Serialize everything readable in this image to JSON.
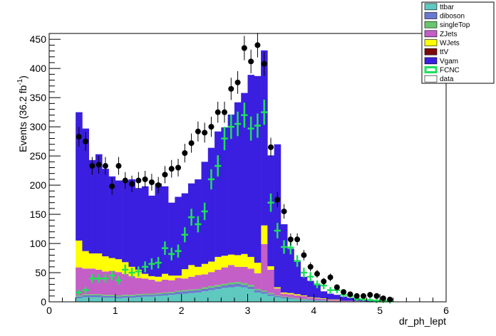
{
  "chart_data": {
    "type": "bar",
    "stacked": true,
    "xlabel": "dr_ph_lept",
    "ylabel_main": "Events (36.2 fb",
    "ylabel_sup": "-1",
    "ylabel_close": ")",
    "xlim": [
      0,
      6
    ],
    "ylim": [
      0,
      460
    ],
    "xticks": [
      0,
      1,
      2,
      3,
      4,
      5,
      6
    ],
    "yticks": [
      0,
      50,
      100,
      150,
      200,
      250,
      300,
      350,
      400,
      450
    ],
    "grid": false,
    "legend_position": "top-right",
    "bin_width": 0.1,
    "x_start": 0.4,
    "series": [
      {
        "name": "ttbar",
        "color": "#5fc9c0",
        "values": [
          6,
          8,
          8,
          8,
          7,
          7,
          6,
          7,
          7,
          8,
          9,
          9,
          10,
          11,
          12,
          13,
          14,
          15,
          16,
          18,
          20,
          22,
          24,
          25,
          26,
          25,
          22,
          16,
          14,
          10,
          8,
          6,
          5,
          4,
          3,
          3,
          2,
          2,
          1,
          1,
          1,
          1,
          1,
          0,
          0,
          0,
          0,
          0
        ]
      },
      {
        "name": "diboson",
        "color": "#6b78d0",
        "values": [
          3,
          3,
          3,
          3,
          3,
          3,
          3,
          3,
          3,
          3,
          3,
          3,
          3,
          3,
          3,
          4,
          4,
          4,
          4,
          4,
          4,
          4,
          4,
          5,
          5,
          4,
          4,
          4,
          3,
          3,
          2,
          2,
          2,
          1,
          1,
          1,
          1,
          1,
          0,
          0,
          0,
          0,
          0,
          0,
          0,
          0,
          0,
          0
        ]
      },
      {
        "name": "singleTop",
        "color": "#69c66e",
        "values": [
          2,
          2,
          2,
          2,
          2,
          2,
          2,
          2,
          2,
          2,
          2,
          2,
          2,
          2,
          2,
          2,
          2,
          2,
          2,
          3,
          3,
          3,
          3,
          3,
          3,
          3,
          3,
          2,
          2,
          2,
          1,
          1,
          1,
          1,
          1,
          0,
          0,
          0,
          0,
          0,
          0,
          0,
          0,
          0,
          0,
          0,
          0,
          0
        ]
      },
      {
        "name": "ZJets",
        "color": "#c45fc7",
        "values": [
          48,
          44,
          44,
          42,
          40,
          41,
          40,
          36,
          32,
          28,
          26,
          24,
          20,
          22,
          20,
          22,
          20,
          22,
          24,
          22,
          24,
          26,
          28,
          30,
          26,
          28,
          28,
          27,
          80,
          40,
          12,
          5,
          5,
          5,
          5,
          3,
          3,
          2,
          2,
          2,
          1,
          1,
          1,
          1,
          0,
          0,
          0,
          0
        ]
      },
      {
        "name": "WJets",
        "color": "#ffff00",
        "values": [
          46,
          30,
          26,
          28,
          26,
          22,
          22,
          20,
          16,
          14,
          8,
          6,
          8,
          10,
          8,
          4,
          16,
          20,
          14,
          18,
          18,
          22,
          20,
          18,
          20,
          22,
          20,
          18,
          32,
          6,
          2,
          2,
          2,
          2,
          1,
          1,
          1,
          1,
          1,
          1,
          0,
          0,
          0,
          0,
          0,
          0,
          0,
          0
        ]
      },
      {
        "name": "ttV",
        "color": "#7b0c0c",
        "values": [
          0,
          0,
          0,
          0,
          0,
          0,
          0,
          0,
          0,
          0,
          0,
          0,
          0,
          0,
          0,
          0,
          0,
          0,
          0,
          0,
          0,
          0,
          0,
          0,
          0,
          0,
          0,
          0,
          0,
          0,
          0,
          0,
          0,
          0,
          0,
          0,
          0,
          0,
          0,
          0,
          0,
          0,
          0,
          0,
          0,
          0,
          0,
          0
        ]
      },
      {
        "name": "Vgam",
        "color": "#3a1fe0",
        "values": [
          220,
          210,
          160,
          170,
          150,
          140,
          135,
          140,
          150,
          140,
          150,
          138,
          160,
          150,
          125,
          135,
          130,
          140,
          150,
          175,
          195,
          215,
          220,
          240,
          262,
          276,
          312,
          320,
          300,
          190,
          245,
          117,
          76,
          58,
          32,
          28,
          22,
          12,
          10,
          8,
          7,
          5,
          4,
          3,
          2,
          2,
          1,
          1
        ]
      }
    ],
    "signal": {
      "name": "FCNC",
      "color": "#1fe05a",
      "values": [
        16,
        20,
        40,
        40,
        40,
        45,
        37,
        55,
        50,
        52,
        60,
        65,
        67,
        92,
        82,
        87,
        115,
        145,
        133,
        155,
        210,
        233,
        280,
        300,
        305,
        320,
        297,
        302,
        325,
        170,
        122,
        94,
        93,
        70,
        50,
        43,
        30,
        28,
        20,
        20,
        12,
        10,
        5,
        4,
        3,
        2,
        2,
        1
      ]
    },
    "data": {
      "name": "data",
      "values": [
        283,
        275,
        233,
        235,
        233,
        198,
        233,
        208,
        202,
        208,
        210,
        205,
        200,
        218,
        228,
        230,
        255,
        272,
        292,
        290,
        300,
        325,
        325,
        365,
        376,
        435,
        412,
        440,
        408,
        265,
        175,
        155,
        107,
        107,
        80,
        60,
        48,
        35,
        42,
        25,
        17,
        13,
        10,
        10,
        12,
        10,
        6,
        4
      ]
    }
  }
}
